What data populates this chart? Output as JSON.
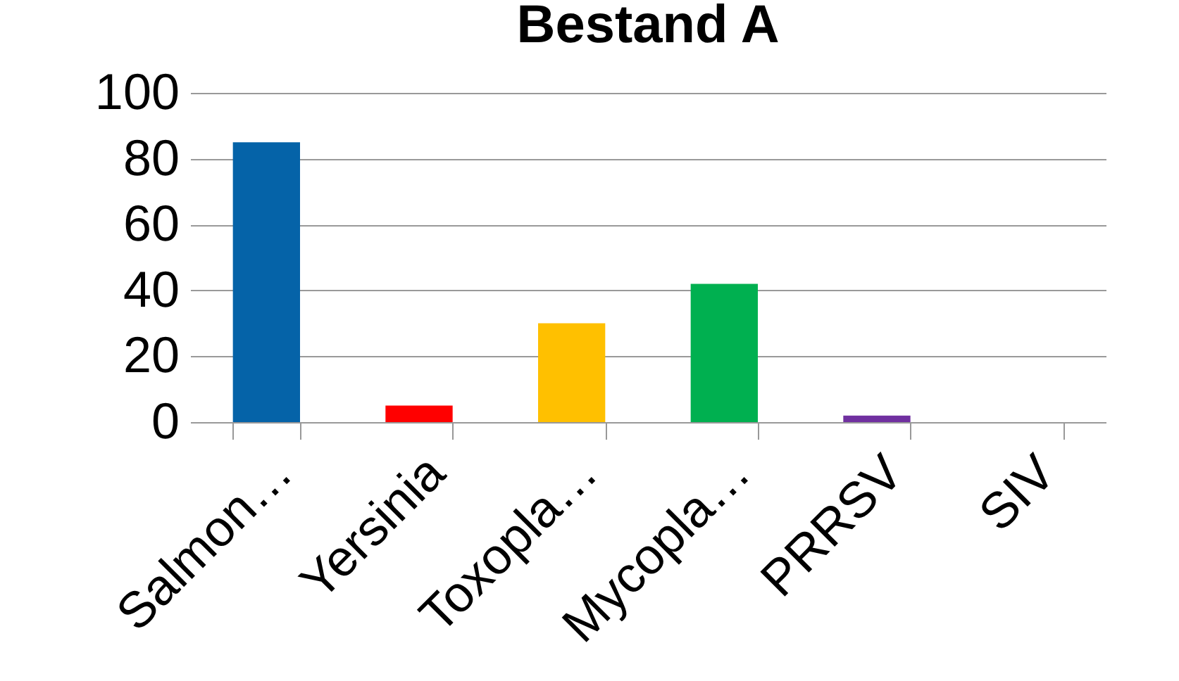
{
  "chart_data": {
    "type": "bar",
    "title": "Bestand A",
    "categories": [
      "Salmon…",
      "Yersinia",
      "Toxopla…",
      "Mycopla…",
      "PRRSV",
      "SIV"
    ],
    "values": [
      85,
      5,
      30,
      42,
      2,
      0
    ],
    "colors": [
      "#0563a8",
      "#ff0000",
      "#ffc000",
      "#00b050",
      "#7030a0",
      "#4472c4"
    ],
    "ylim": [
      0,
      100
    ],
    "yticks": [
      0,
      20,
      40,
      60,
      80,
      100
    ],
    "grid": "y"
  }
}
